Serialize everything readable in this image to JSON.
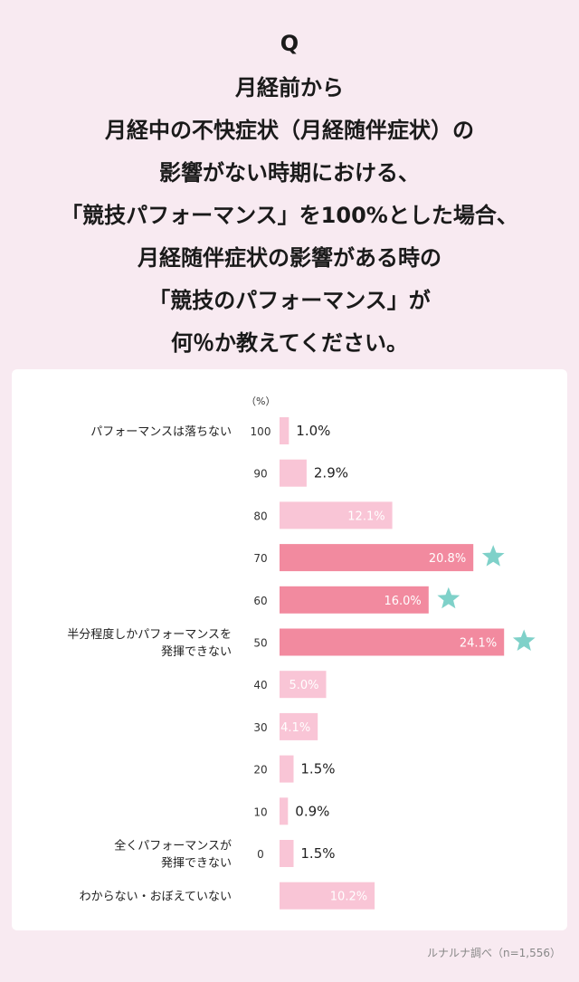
{
  "header": {
    "q_mark": "Q",
    "question_lines": [
      "月経前から",
      "月経中の不快症状（月経随伴症状）の",
      "影響がない時期における、",
      "「競技パフォーマンス」を100%とした場合、",
      "月経随伴症状の影響がある時の",
      "「競技のパフォーマンス」が",
      "何％か教えてください。"
    ]
  },
  "chart_data": {
    "type": "bar",
    "orientation": "horizontal",
    "unit_label": "（%）",
    "categories": [
      "100",
      "90",
      "80",
      "70",
      "60",
      "50",
      "40",
      "30",
      "20",
      "10",
      "0",
      ""
    ],
    "values": [
      1.0,
      2.9,
      12.1,
      20.8,
      16.0,
      24.1,
      5.0,
      4.1,
      1.5,
      0.9,
      1.5,
      10.2
    ],
    "value_labels": [
      "1.0%",
      "2.9%",
      "12.1%",
      "20.8%",
      "16.0%",
      "24.1%",
      "5.0%",
      "4.1%",
      "1.5%",
      "0.9%",
      "1.5%",
      "10.2%"
    ],
    "row_annotations": [
      [
        "パフォーマンスは落ちない"
      ],
      [],
      [],
      [],
      [],
      [
        "半分程度しかパフォーマンスを",
        "発揮できない"
      ],
      [],
      [],
      [],
      [],
      [
        "全くパフォーマンスが",
        "発揮できない"
      ],
      [
        "わからない・おぼえていない"
      ]
    ],
    "highlighted": [
      false,
      false,
      false,
      true,
      true,
      true,
      false,
      false,
      false,
      false,
      false,
      false
    ],
    "star_marked": [
      false,
      false,
      false,
      true,
      true,
      true,
      false,
      false,
      false,
      false,
      false,
      false
    ],
    "colors": {
      "bar_light": "#f9c5d6",
      "bar_highlight": "#f28a9f",
      "star": "#7fd1c9",
      "label_inside": "#ffffff",
      "label_outside": "#222222"
    }
  },
  "footer": {
    "source": "ルナルナ調べ（n=1,556）"
  }
}
